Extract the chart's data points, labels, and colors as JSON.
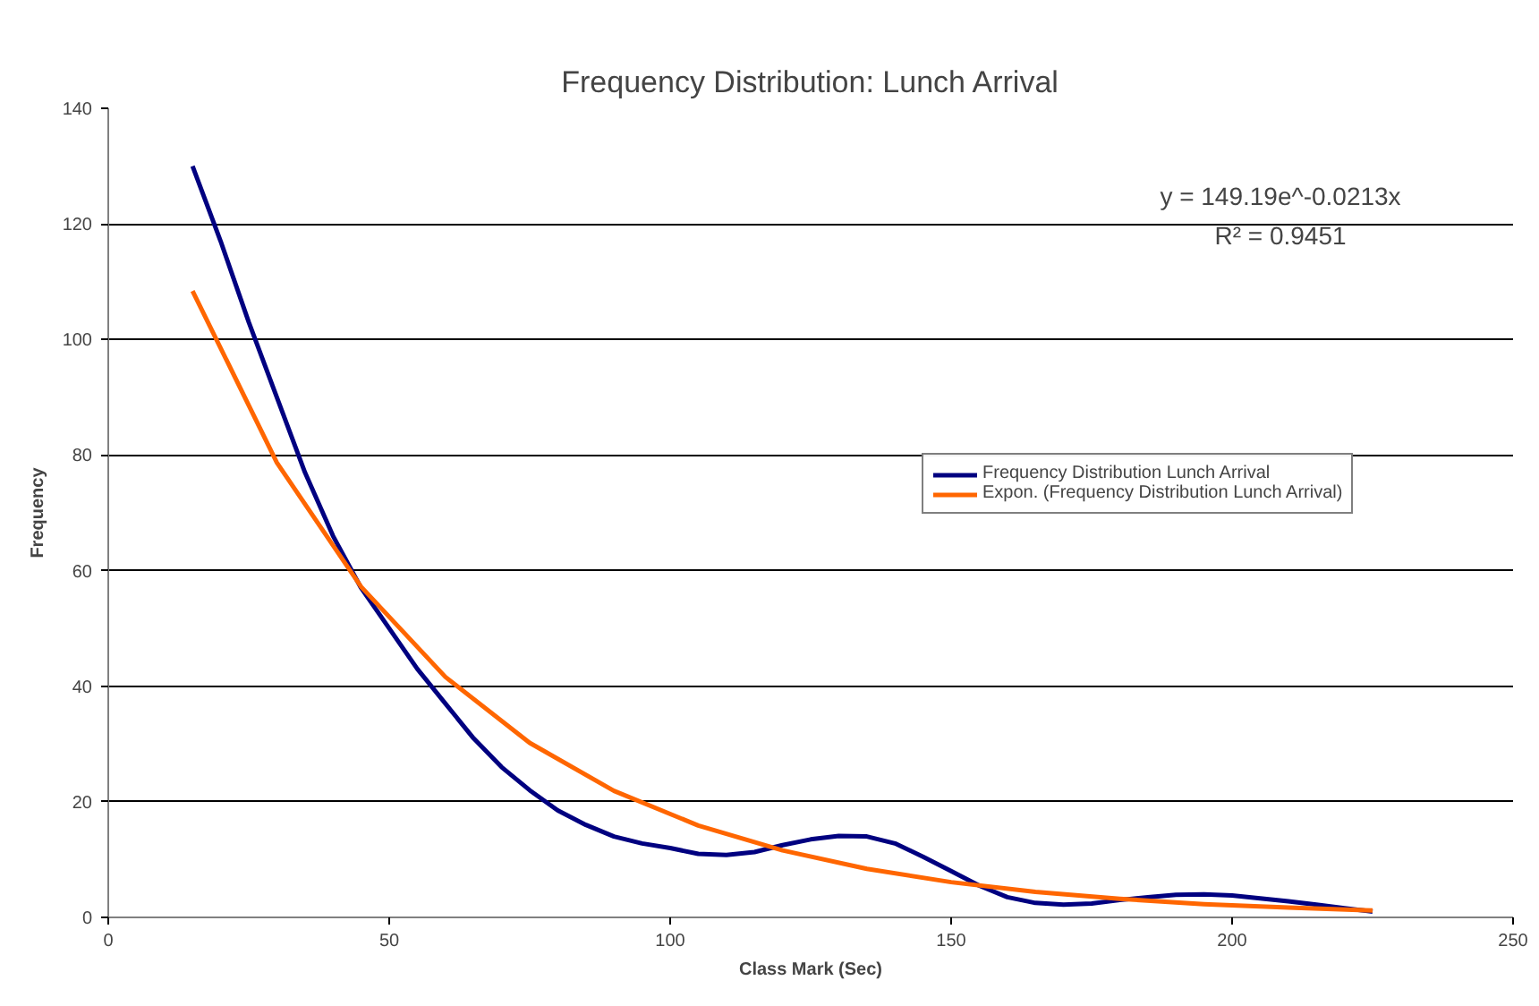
{
  "chart_data": {
    "type": "line",
    "title": "Frequency Distribution: Lunch Arrival",
    "xlabel": "Class Mark (Sec)",
    "ylabel": "Frequency",
    "xlim": [
      0,
      250
    ],
    "xticks": [
      0,
      50,
      100,
      150,
      200,
      250
    ],
    "ylim": [
      0,
      140
    ],
    "yticks": [
      0,
      20,
      40,
      60,
      80,
      100,
      120,
      140
    ],
    "grid": "y",
    "legend": "right",
    "marker": "none",
    "line_style": "solid",
    "series": [
      {
        "name": "Frequency Distribution Lunch Arrival",
        "color": "#000080",
        "x": [
          15,
          20,
          25,
          30,
          35,
          40,
          45,
          50,
          55,
          60,
          65,
          70,
          75,
          80,
          85,
          90,
          95,
          100,
          105,
          110,
          115,
          120,
          125,
          130,
          135,
          140,
          145,
          150,
          155,
          160,
          165,
          170,
          175,
          180,
          185,
          190,
          195,
          200,
          205,
          210,
          215,
          220,
          225
        ],
        "values": [
          130,
          117,
          103,
          90,
          77,
          66,
          57,
          50,
          43,
          37,
          31,
          26,
          22,
          18.5,
          16,
          14,
          12.8,
          12,
          11,
          10.8,
          11.3,
          12.5,
          13.5,
          14.1,
          14,
          12.8,
          10.5,
          8,
          5.5,
          3.5,
          2.5,
          2.2,
          2.4,
          3,
          3.5,
          3.9,
          4,
          3.8,
          3.3,
          2.8,
          2.2,
          1.6,
          1
        ]
      },
      {
        "name": "Expon. (Frequency Distribution Lunch Arrival)",
        "color": "#ff6600",
        "x": [
          15,
          30,
          45,
          60,
          75,
          90,
          105,
          120,
          135,
          150,
          165,
          180,
          195,
          210,
          225
        ],
        "values": [
          108.4,
          78.7,
          57.2,
          41.6,
          30.2,
          21.9,
          15.9,
          11.6,
          8.4,
          6.1,
          4.4,
          3.2,
          2.3,
          1.7,
          1.2
        ]
      }
    ],
    "annotations": [
      "y = 149.19e^-0.0213x",
      "R² = 0.9451"
    ]
  }
}
